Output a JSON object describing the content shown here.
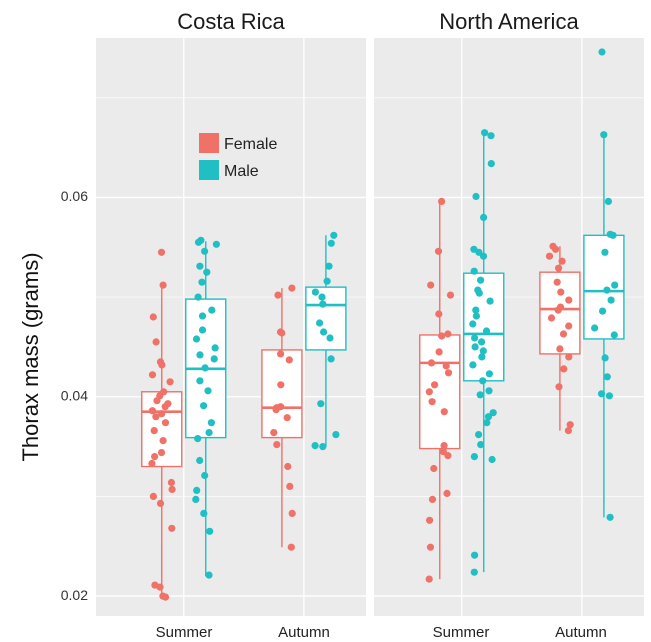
{
  "chart_data": {
    "type": "boxplot",
    "ylabel": "Thorax mass (grams)",
    "xlabel": "",
    "ylim": [
      0.018,
      0.076
    ],
    "yticks": [
      0.02,
      0.04,
      0.06
    ],
    "ytick_labels": [
      "0.02",
      "0.04",
      "0.06"
    ],
    "categories": [
      "Summer",
      "Autumn"
    ],
    "panels": [
      "Costa Rica",
      "North America"
    ],
    "legend": {
      "position": "top-left inside",
      "entries": [
        "Female",
        "Male"
      ]
    },
    "colors": {
      "Female": "#F07168",
      "Male": "#1FBFC4",
      "panel_bg": "#EBEBEB",
      "grid": "#FFFFFF"
    },
    "grid": true,
    "boxes": [
      {
        "panel": "Costa Rica",
        "category": "Summer",
        "series": "Female",
        "q1": 0.033,
        "median": 0.0385,
        "q3": 0.0405,
        "whisker_low": 0.02,
        "whisker_high": 0.0512,
        "points": [
          0.0545,
          0.0512,
          0.048,
          0.0455,
          0.0435,
          0.0432,
          0.0422,
          0.0415,
          0.0405,
          0.0401,
          0.0396,
          0.0393,
          0.039,
          0.0386,
          0.0383,
          0.038,
          0.0374,
          0.0366,
          0.0356,
          0.0344,
          0.034,
          0.0333,
          0.0314,
          0.0307,
          0.03,
          0.0293,
          0.0268,
          0.0211,
          0.0209,
          0.02,
          0.0199
        ]
      },
      {
        "panel": "Costa Rica",
        "category": "Summer",
        "series": "Male",
        "q1": 0.0359,
        "median": 0.0428,
        "q3": 0.0498,
        "whisker_low": 0.022,
        "whisker_high": 0.0556,
        "points": [
          0.0557,
          0.0555,
          0.0553,
          0.0546,
          0.0531,
          0.0525,
          0.0515,
          0.05,
          0.0487,
          0.0481,
          0.0467,
          0.0458,
          0.0449,
          0.0442,
          0.0438,
          0.0429,
          0.0416,
          0.0406,
          0.0391,
          0.0374,
          0.0364,
          0.0358,
          0.0336,
          0.0321,
          0.0306,
          0.0297,
          0.0283,
          0.0265,
          0.0221
        ]
      },
      {
        "panel": "Costa Rica",
        "category": "Autumn",
        "series": "Female",
        "q1": 0.0359,
        "median": 0.0389,
        "q3": 0.0447,
        "whisker_low": 0.0249,
        "whisker_high": 0.0509,
        "points": [
          0.0509,
          0.0502,
          0.0465,
          0.0464,
          0.0443,
          0.0437,
          0.0412,
          0.039,
          0.0389,
          0.0387,
          0.0379,
          0.0364,
          0.0352,
          0.033,
          0.031,
          0.0283,
          0.0249
        ]
      },
      {
        "panel": "Costa Rica",
        "category": "Autumn",
        "series": "Male",
        "q1": 0.0447,
        "median": 0.0492,
        "q3": 0.051,
        "whisker_low": 0.035,
        "whisker_high": 0.0562,
        "points": [
          0.0562,
          0.0554,
          0.0531,
          0.0516,
          0.0505,
          0.05,
          0.0493,
          0.0474,
          0.0465,
          0.0459,
          0.0438,
          0.0393,
          0.0362,
          0.0351,
          0.035
        ]
      },
      {
        "panel": "North America",
        "category": "Summer",
        "series": "Female",
        "q1": 0.0348,
        "median": 0.0434,
        "q3": 0.0462,
        "whisker_low": 0.0217,
        "whisker_high": 0.0596,
        "points": [
          0.0596,
          0.0546,
          0.0512,
          0.0502,
          0.0483,
          0.0463,
          0.0461,
          0.0445,
          0.0434,
          0.0431,
          0.0424,
          0.0412,
          0.0405,
          0.0395,
          0.0385,
          0.0351,
          0.0345,
          0.0341,
          0.0328,
          0.0303,
          0.0297,
          0.0276,
          0.0249,
          0.0217
        ]
      },
      {
        "panel": "North America",
        "category": "Summer",
        "series": "Male",
        "q1": 0.0416,
        "median": 0.0463,
        "q3": 0.0524,
        "whisker_low": 0.0224,
        "whisker_high": 0.0665,
        "points": [
          0.0665,
          0.0662,
          0.0634,
          0.0601,
          0.058,
          0.0548,
          0.0545,
          0.0541,
          0.0526,
          0.0517,
          0.0507,
          0.0504,
          0.0496,
          0.0487,
          0.0481,
          0.0473,
          0.0466,
          0.0459,
          0.0455,
          0.045,
          0.0446,
          0.044,
          0.0432,
          0.0423,
          0.0416,
          0.0406,
          0.0402,
          0.0384,
          0.038,
          0.0374,
          0.0362,
          0.0352,
          0.034,
          0.0337,
          0.0241,
          0.0224
        ]
      },
      {
        "panel": "North America",
        "category": "Autumn",
        "series": "Female",
        "q1": 0.0443,
        "median": 0.0488,
        "q3": 0.0525,
        "whisker_low": 0.0366,
        "whisker_high": 0.0551,
        "points": [
          0.0551,
          0.0548,
          0.0541,
          0.0536,
          0.0529,
          0.0515,
          0.0505,
          0.0497,
          0.049,
          0.0487,
          0.0479,
          0.0471,
          0.0463,
          0.0448,
          0.044,
          0.0428,
          0.041,
          0.0372,
          0.0366
        ]
      },
      {
        "panel": "North America",
        "category": "Autumn",
        "series": "Male",
        "q1": 0.0458,
        "median": 0.0506,
        "q3": 0.0562,
        "whisker_low": 0.0279,
        "whisker_high": 0.0663,
        "points": [
          0.0746,
          0.0663,
          0.0596,
          0.0563,
          0.0562,
          0.0545,
          0.0512,
          0.0507,
          0.0497,
          0.0486,
          0.0469,
          0.0462,
          0.0439,
          0.042,
          0.0403,
          0.0401,
          0.0279
        ]
      }
    ]
  }
}
